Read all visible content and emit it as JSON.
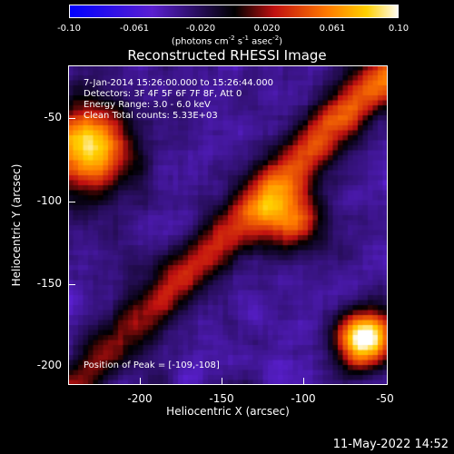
{
  "colorbar": {
    "ticks": [
      "-0.10",
      "-0.061",
      "-0.020",
      "0.020",
      "0.061",
      "0.10"
    ],
    "units_prefix": "(photons cm",
    "units_sup1": "-2",
    "units_mid1": " s",
    "units_sup2": "-1",
    "units_mid2": " asec",
    "units_sup3": "-2",
    "units_suffix": ")"
  },
  "plot": {
    "title": "Reconstructed RHESSI Image",
    "xlabel": "Heliocentric X (arcsec)",
    "ylabel": "Heliocentric Y (arcsec)",
    "xticks": [
      "-200",
      "-150",
      "-100",
      "-50"
    ],
    "yticks": [
      "-50",
      "-100",
      "-150",
      "-200"
    ],
    "annotation_lines": [
      "7-Jan-2014 15:26:00.000 to 15:26:44.000",
      "Detectors: 3F 4F 5F 6F 7F 8F, Att 0",
      "Energy Range: 3.0 - 6.0 keV",
      "Clean     Total counts: 5.33E+03"
    ],
    "peak_label": "Position of Peak = [-109,-108]",
    "xlim": [
      -245,
      -50
    ],
    "ylim": [
      -212,
      -28
    ]
  },
  "timestamp": "11-May-2022 14:52"
}
